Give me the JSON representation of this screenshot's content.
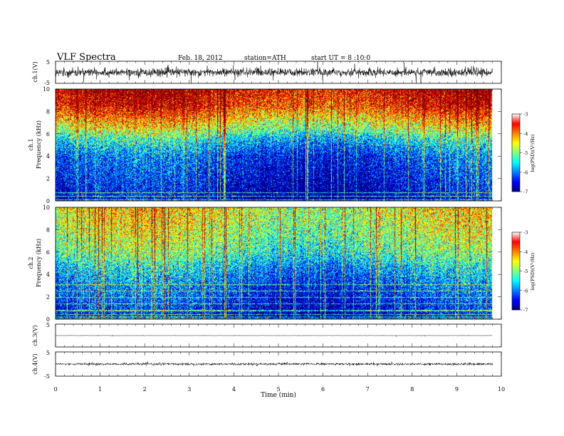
{
  "header": {
    "title": "VLF  Spectra",
    "date": "Feb. 18, 2012",
    "station": "station=ATH",
    "start": "start  UT  =   8  :10:0"
  },
  "chart_data": {
    "type": "heatmap",
    "xlabel": "Time  (min)",
    "xlim": [
      0,
      10
    ],
    "x_ticks": [
      "0",
      "1",
      "2",
      "3",
      "4",
      "5",
      "6",
      "7",
      "8",
      "9",
      "10"
    ],
    "data_end_min": 9.8,
    "panels": [
      {
        "id": "ch1-waveform",
        "type": "line",
        "ylabel": "ch.1(V)",
        "ylim": [
          -5,
          5
        ],
        "y_ticks": [
          "5",
          "-5"
        ],
        "noise_level_v": 0.9
      },
      {
        "id": "ch1-spectrogram",
        "type": "heatmap",
        "ylabel_line1": "ch.1",
        "ylabel_line2": "Frequency  (kHz)",
        "ylim": [
          0,
          10
        ],
        "y_ticks": [
          "0",
          "2",
          "4",
          "6",
          "8",
          "10"
        ],
        "colorbar": {
          "label": "log(PSD)(V²/Hz)",
          "range": [
            -7,
            -3
          ],
          "ticks": [
            "-3",
            "-4",
            "-5",
            "-6",
            "-7"
          ]
        },
        "intensity_profile": [
          {
            "freq_khz": 0,
            "log_psd": -6.9
          },
          {
            "freq_khz": 2,
            "log_psd": -6.6
          },
          {
            "freq_khz": 4,
            "log_psd": -6.3
          },
          {
            "freq_khz": 5.5,
            "log_psd": -5.6
          },
          {
            "freq_khz": 6.5,
            "log_psd": -4.8
          },
          {
            "freq_khz": 7.5,
            "log_psd": -4.2
          },
          {
            "freq_khz": 8.5,
            "log_psd": -3.6
          },
          {
            "freq_khz": 10,
            "log_psd": -3.3
          }
        ]
      },
      {
        "id": "ch2-spectrogram",
        "type": "heatmap",
        "ylabel_line1": "ch.2",
        "ylabel_line2": "Frequency  (kHz)",
        "ylim": [
          0,
          10
        ],
        "y_ticks": [
          "0",
          "2",
          "4",
          "6",
          "8",
          "10"
        ],
        "colorbar": {
          "label": "log(PSD)(V²/Hz)",
          "range": [
            -7,
            -3
          ],
          "ticks": [
            "-3",
            "-4",
            "-5",
            "-6",
            "-7"
          ]
        },
        "intensity_profile": [
          {
            "freq_khz": 0,
            "log_psd": -6.8
          },
          {
            "freq_khz": 2,
            "log_psd": -6.4
          },
          {
            "freq_khz": 3,
            "log_psd": -6.2
          },
          {
            "freq_khz": 4.5,
            "log_psd": -5.8
          },
          {
            "freq_khz": 6,
            "log_psd": -5.2
          },
          {
            "freq_khz": 7.5,
            "log_psd": -4.9
          },
          {
            "freq_khz": 9,
            "log_psd": -4.7
          },
          {
            "freq_khz": 10,
            "log_psd": -4.6
          }
        ]
      },
      {
        "id": "ch3-waveform",
        "type": "line",
        "ylabel": "ch.3(V)",
        "ylim": [
          -5,
          5
        ],
        "y_ticks": [
          "5"
        ],
        "noise_level_v": 0.05
      },
      {
        "id": "ch4-waveform",
        "type": "line",
        "ylabel": "ch.4(V)",
        "ylim": [
          -5,
          5
        ],
        "y_ticks": [
          "5",
          "-5"
        ],
        "noise_level_v": 0.25
      }
    ]
  }
}
